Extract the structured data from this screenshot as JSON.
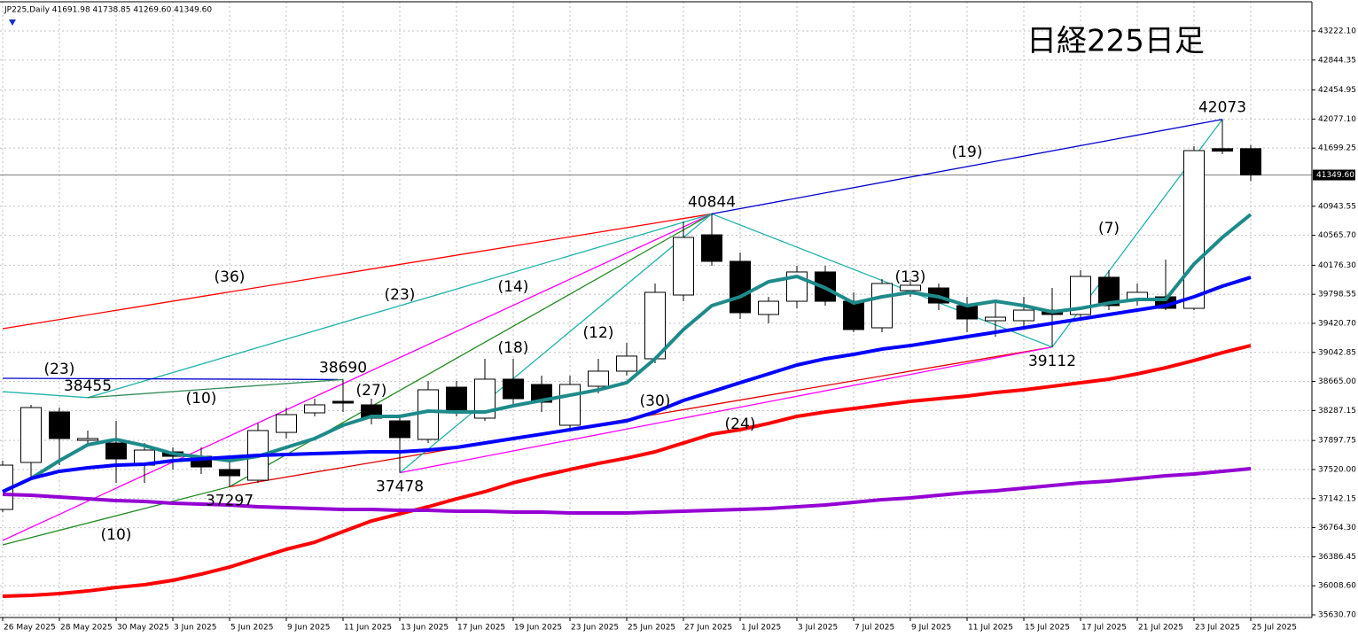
{
  "chart_data": {
    "type": "candlestick",
    "header": "JP225,Daily  41691.98 41738.85 41269.60 41349.60",
    "title": "日経225日足",
    "categories": [
      "26 May 2025",
      null,
      "28 May 2025",
      null,
      "30 May 2025",
      null,
      "3 Jun 2025",
      null,
      "5 Jun 2025",
      null,
      "9 Jun 2025",
      null,
      "11 Jun 2025",
      null,
      "13 Jun 2025",
      null,
      "17 Jun 2025",
      null,
      "19 Jun 2025",
      null,
      "23 Jun 2025",
      null,
      "25 Jun 2025",
      null,
      "27 Jun 2025",
      null,
      "1 Jul 2025",
      null,
      "3 Jul 2025",
      null,
      "7 Jul 2025",
      null,
      "9 Jul 2025",
      null,
      "11 Jul 2025",
      null,
      "15 Jul 2025",
      null,
      "17 Jul 2025",
      null,
      "21 Jul 2025",
      null,
      "23 Jul 2025",
      null,
      "25 Jul 2025"
    ],
    "open": [
      37001,
      37612,
      38269,
      37900,
      37865,
      37577,
      37750,
      37692,
      37520,
      37381,
      38003,
      38257,
      38407,
      38361,
      38153,
      37912,
      38591,
      38188,
      38695,
      38626,
      38096,
      38603,
      38799,
      38960,
      39789,
      40572,
      40227,
      39536,
      39708,
      40089,
      39708,
      39363,
      39847,
      39881,
      39651,
      39455,
      39455,
      39593,
      39536,
      40020,
      39731,
      39766,
      39616,
      41692,
      41691.98
    ],
    "high": [
      37635,
      38361,
      38326,
      38027,
      38153,
      37865,
      37808,
      37808,
      37635,
      38119,
      38326,
      38441,
      38690,
      38441,
      38211,
      38672,
      38672,
      38960,
      38960,
      38741,
      38741,
      38960,
      39168,
      39939,
      40745,
      40844,
      40342,
      39766,
      40169,
      40169,
      39824,
      39996,
      39996,
      39939,
      39766,
      39708,
      39766,
      39881,
      40111,
      40111,
      39939,
      40250,
      41724,
      42073,
      41738.85
    ],
    "low": [
      36967,
      37404,
      37577,
      37865,
      37347,
      37347,
      37520,
      37462,
      37297,
      37347,
      37923,
      38211,
      38268,
      38107,
      37478,
      37865,
      38211,
      38153,
      38326,
      38268,
      38038,
      38510,
      38741,
      38902,
      39708,
      40169,
      39478,
      39420,
      39616,
      39651,
      39305,
      39305,
      39766,
      39593,
      39305,
      39248,
      39363,
      39112,
      39478,
      39593,
      39651,
      39593,
      39593,
      41620,
      41269.6
    ],
    "close": [
      37577,
      38326,
      37923,
      37923,
      37658,
      37773,
      37692,
      37554,
      37439,
      38027,
      38234,
      38361,
      38384,
      38188,
      37935,
      38557,
      38268,
      38695,
      38441,
      38395,
      38626,
      38799,
      38995,
      39824,
      40538,
      40227,
      39559,
      39708,
      40089,
      39708,
      39340,
      39939,
      39916,
      39685,
      39478,
      39501,
      39593,
      39536,
      40031,
      39651,
      39824,
      39616,
      41667,
      41660,
      41349.6
    ],
    "up_color": "#ffffff",
    "down_color": "#000000",
    "lines": [
      {
        "color": "#1e8a8a",
        "values": [
          37232,
          37404,
          37635,
          37842,
          37911,
          37831,
          37727,
          37681,
          37635,
          37692,
          37808,
          37923,
          38096,
          38211,
          38211,
          38280,
          38268,
          38268,
          38349,
          38418,
          38487,
          38556,
          38649,
          38960,
          39340,
          39651,
          39766,
          39962,
          40031,
          39881,
          39685,
          39766,
          39824,
          39766,
          39651,
          39708,
          39651,
          39570,
          39616,
          39685,
          39731,
          39731,
          40192,
          40538,
          40837
        ]
      },
      {
        "color": "#0000ff",
        "values": [
          37232,
          37404,
          37497,
          37543,
          37577,
          37589,
          37635,
          37658,
          37681,
          37704,
          37715,
          37727,
          37738,
          37750,
          37750,
          37773,
          37808,
          37865,
          37923,
          37980,
          38038,
          38096,
          38153,
          38268,
          38418,
          38533,
          38649,
          38764,
          38879,
          38960,
          39017,
          39086,
          39132,
          39190,
          39248,
          39305,
          39363,
          39420,
          39478,
          39536,
          39593,
          39651,
          39766,
          39904,
          40019
        ]
      },
      {
        "color": "#ff0000",
        "values": [
          35872,
          35884,
          35907,
          35941,
          35987,
          36022,
          36080,
          36160,
          36252,
          36368,
          36483,
          36575,
          36713,
          36851,
          36944,
          37036,
          37139,
          37232,
          37347,
          37439,
          37520,
          37600,
          37669,
          37750,
          37865,
          37980,
          38038,
          38119,
          38211,
          38268,
          38314,
          38361,
          38407,
          38441,
          38476,
          38522,
          38556,
          38602,
          38649,
          38695,
          38764,
          38844,
          38937,
          39040,
          39132
        ]
      },
      {
        "color": "#9400d3",
        "values": [
          37197,
          37186,
          37162,
          37139,
          37116,
          37105,
          37082,
          37070,
          37059,
          37036,
          37024,
          37013,
          37001,
          37001,
          36990,
          36990,
          36978,
          36978,
          36967,
          36967,
          36955,
          36955,
          36955,
          36967,
          36978,
          36990,
          37001,
          37013,
          37036,
          37059,
          37093,
          37128,
          37151,
          37186,
          37220,
          37243,
          37278,
          37312,
          37347,
          37370,
          37404,
          37439,
          37462,
          37497,
          37531
        ]
      }
    ],
    "trendlines": [
      {
        "color": "#ff0000",
        "x": [
          0,
          25
        ],
        "y": [
          39351,
          40844
        ]
      },
      {
        "color": "#20b2aa",
        "x": [
          0,
          3,
          25
        ],
        "y": [
          38533,
          38455,
          40844
        ]
      },
      {
        "color": "#0000cd",
        "x": [
          0,
          12
        ],
        "y": [
          38706,
          38690
        ]
      },
      {
        "color": "#2e8b57",
        "x": [
          3,
          12
        ],
        "y": [
          38455,
          38690
        ]
      },
      {
        "color": "#ff00ff",
        "x": [
          0,
          25
        ],
        "y": [
          36598,
          40844
        ]
      },
      {
        "color": "#228b22",
        "x": [
          0,
          8,
          25
        ],
        "y": [
          36540,
          37297,
          40844
        ]
      },
      {
        "color": "#e00000",
        "x": [
          8,
          37
        ],
        "y": [
          37297,
          39112
        ]
      },
      {
        "color": "#ff00ff",
        "x": [
          14,
          37
        ],
        "y": [
          37478,
          39112
        ]
      },
      {
        "color": "#20b2aa",
        "x": [
          14,
          25
        ],
        "y": [
          37478,
          40844
        ]
      },
      {
        "color": "#20b2aa",
        "x": [
          25,
          37,
          43
        ],
        "y": [
          40844,
          39112,
          42073
        ]
      },
      {
        "color": "#0000cd",
        "x": [
          25,
          43
        ],
        "y": [
          40844,
          42073
        ]
      }
    ],
    "pivots": [
      {
        "x": 3,
        "value": 38455,
        "side": "above"
      },
      {
        "x": 12,
        "value": 38690,
        "side": "above"
      },
      {
        "x": 8,
        "value": 37297,
        "side": "below"
      },
      {
        "x": 14,
        "value": 37478,
        "side": "below"
      },
      {
        "x": 25,
        "value": 40844,
        "side": "above"
      },
      {
        "x": 37,
        "value": 39112,
        "side": "below"
      },
      {
        "x": 43,
        "value": 42073,
        "side": "above"
      }
    ],
    "annotations": [
      {
        "text": "(36)",
        "x": 8,
        "y": 40019
      },
      {
        "text": "(23)",
        "x": 2,
        "y": 38821
      },
      {
        "text": "(23)",
        "x": 14,
        "y": 39789
      },
      {
        "text": "(14)",
        "x": 18,
        "y": 39893
      },
      {
        "text": "(18)",
        "x": 18,
        "y": 39098
      },
      {
        "text": "(12)",
        "x": 21,
        "y": 39294
      },
      {
        "text": "(10)",
        "x": 7,
        "y": 38441
      },
      {
        "text": "(27)",
        "x": 13,
        "y": 38545
      },
      {
        "text": "(30)",
        "x": 23,
        "y": 38407
      },
      {
        "text": "(24)",
        "x": 26,
        "y": 38107
      },
      {
        "text": "(13)",
        "x": 32,
        "y": 40019
      },
      {
        "text": "(7)",
        "x": 39,
        "y": 40653
      },
      {
        "text": "(19)",
        "x": 34,
        "y": 41644
      },
      {
        "text": "(10)",
        "x": 4,
        "y": 36667
      }
    ],
    "last_price": {
      "value": 41349.6,
      "label": "41349.60"
    },
    "ylim": [
      35596,
      43602
    ],
    "yticks": [
      {
        "value": 35630.7,
        "label": "35630.70"
      },
      {
        "value": 36008.6,
        "label": "36008.60"
      },
      {
        "value": 36386.45,
        "label": "36386.45"
      },
      {
        "value": 36764.3,
        "label": "36764.30"
      },
      {
        "value": 37142.15,
        "label": "37142.15"
      },
      {
        "value": 37520,
        "label": "37520.00"
      },
      {
        "value": 37897.75,
        "label": "37897.75"
      },
      {
        "value": 38287.15,
        "label": "38287.15"
      },
      {
        "value": 38665,
        "label": "38665.00"
      },
      {
        "value": 39042.85,
        "label": "39042.85"
      },
      {
        "value": 39420.7,
        "label": "39420.70"
      },
      {
        "value": 39798.55,
        "label": "39798.55"
      },
      {
        "value": 40176.3,
        "label": "40176.30"
      },
      {
        "value": 40565.7,
        "label": "40565.70"
      },
      {
        "value": 40943.55,
        "label": "40943.55"
      },
      {
        "value": 41699.25,
        "label": "41699.25"
      },
      {
        "value": 42077.1,
        "label": "42077.10"
      },
      {
        "value": 42454.95,
        "label": "42454.95"
      },
      {
        "value": 42844.35,
        "label": "42844.35"
      },
      {
        "value": 43222.1,
        "label": "43222.10"
      }
    ],
    "grid": true
  }
}
